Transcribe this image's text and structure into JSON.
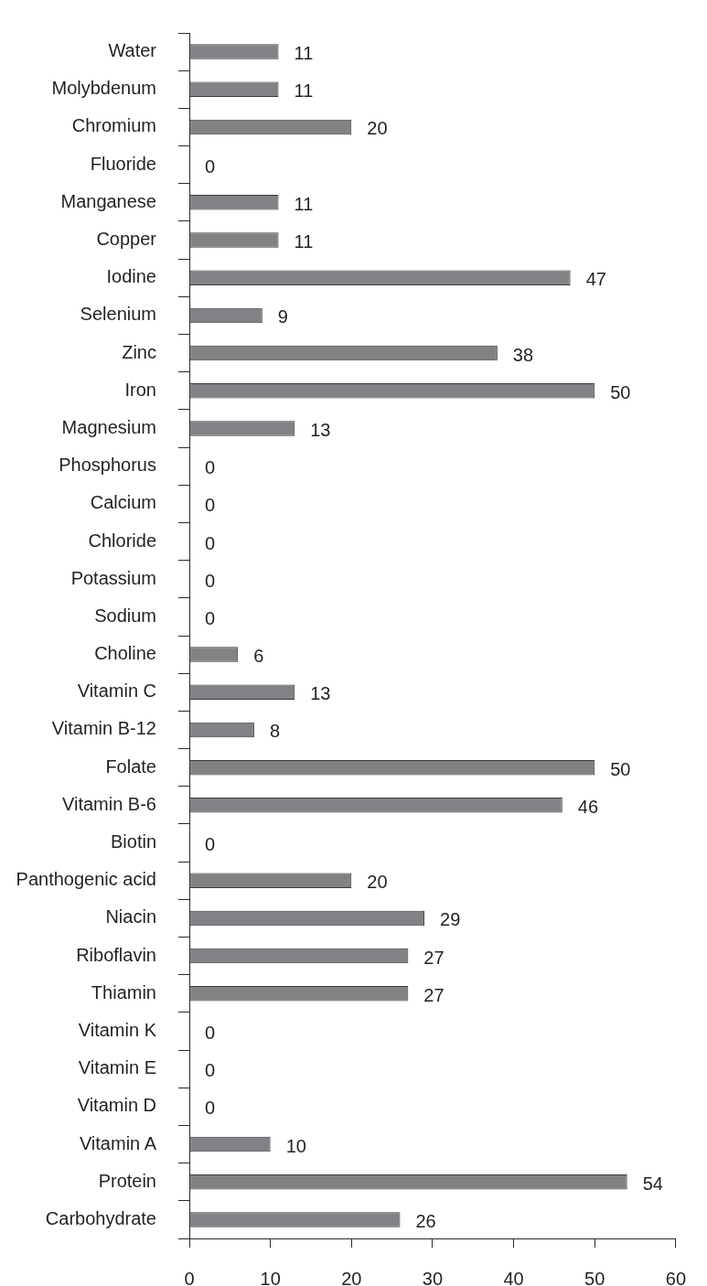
{
  "chart_data": {
    "type": "bar",
    "orientation": "horizontal",
    "categories": [
      "Water",
      "Molybdenum",
      "Chromium",
      "Fluoride",
      "Manganese",
      "Copper",
      "Iodine",
      "Selenium",
      "Zinc",
      "Iron",
      "Magnesium",
      "Phosphorus",
      "Calcium",
      "Chloride",
      "Potassium",
      "Sodium",
      "Choline",
      "Vitamin C",
      "Vitamin B-12",
      "Folate",
      "Vitamin B-6",
      "Biotin",
      "Panthogenic acid",
      "Niacin",
      "Riboflavin",
      "Thiamin",
      "Vitamin K",
      "Vitamin E",
      "Vitamin D",
      "Vitamin A",
      "Protein",
      "Carbohydrate"
    ],
    "values": [
      11,
      11,
      20,
      0,
      11,
      11,
      47,
      9,
      38,
      50,
      13,
      0,
      0,
      0,
      0,
      0,
      6,
      13,
      8,
      50,
      46,
      0,
      20,
      29,
      27,
      27,
      0,
      0,
      0,
      10,
      54,
      26
    ],
    "color": "#818286",
    "xlim": [
      0,
      60
    ],
    "xticks": [
      0,
      10,
      20,
      30,
      40,
      50,
      60
    ],
    "data_labels": true
  }
}
